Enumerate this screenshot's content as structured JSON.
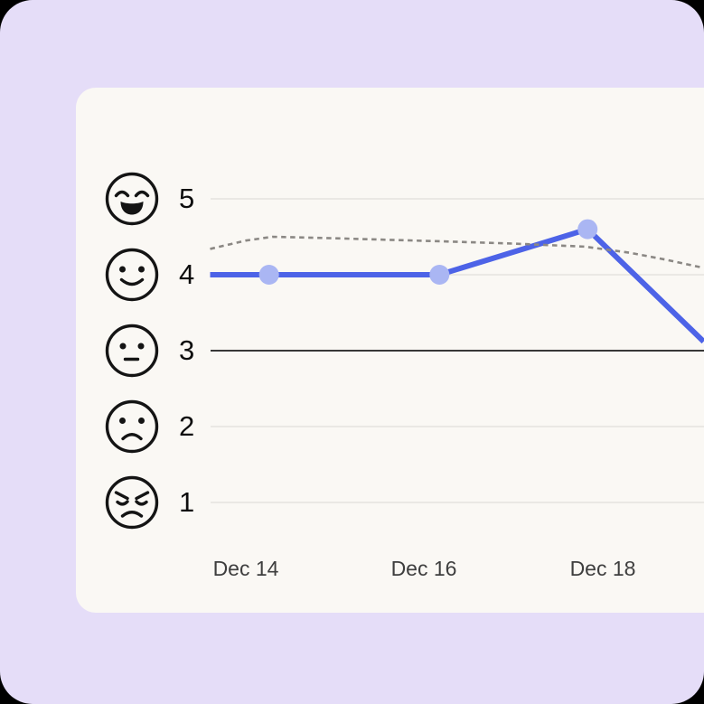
{
  "surface": {
    "backdrop_color": "#e5ddf8",
    "card_color": "#faf8f4",
    "outer_color": "#000000"
  },
  "chart_data": {
    "type": "line",
    "title": "",
    "description": "Mood rating line chart with emoji scale 1-5, solid current line with markers and dashed previous trend line",
    "x_axis": {
      "tick_labels": [
        "Dec 14",
        "Dec 16",
        "Dec 18"
      ],
      "tick_days": [
        14,
        16,
        18
      ]
    },
    "y_axis": {
      "min": 1,
      "max": 5,
      "gridline_values": [
        1,
        2,
        3,
        4,
        5
      ],
      "emphasized_gridline": 3,
      "rows": [
        {
          "label": "5",
          "icon": "face-beaming-smile-icon",
          "mood": "very-happy"
        },
        {
          "label": "4",
          "icon": "face-smile-icon",
          "mood": "happy"
        },
        {
          "label": "3",
          "icon": "face-neutral-icon",
          "mood": "neutral"
        },
        {
          "label": "2",
          "icon": "face-frown-icon",
          "mood": "sad"
        },
        {
          "label": "1",
          "icon": "face-angry-icon",
          "mood": "angry"
        }
      ]
    },
    "series": [
      {
        "name": "mood-current",
        "style": "solid",
        "color": "#4d63e7",
        "marker_color": "#aab6f3",
        "width": 6,
        "marker_radius": 11,
        "points": [
          {
            "day": 13.6,
            "value": 4.0,
            "marker": false
          },
          {
            "day": 14.26,
            "value": 4.0,
            "marker": true
          },
          {
            "day": 16.17,
            "value": 4.0,
            "marker": true
          },
          {
            "day": 17.83,
            "value": 4.6,
            "marker": true
          },
          {
            "day": 19.13,
            "value": 3.12,
            "marker": false
          }
        ]
      },
      {
        "name": "mood-previous",
        "style": "dashed",
        "color": "#8b8884",
        "width": 2.6,
        "dash": "5.5 4.5",
        "points": [
          {
            "day": 13.6,
            "value": 4.34,
            "marker": false
          },
          {
            "day": 14.0,
            "value": 4.45,
            "marker": false
          },
          {
            "day": 14.3,
            "value": 4.5,
            "marker": false
          },
          {
            "day": 15.0,
            "value": 4.48,
            "marker": false
          },
          {
            "day": 15.6,
            "value": 4.46,
            "marker": false
          },
          {
            "day": 16.2,
            "value": 4.44,
            "marker": false
          },
          {
            "day": 17.0,
            "value": 4.41,
            "marker": false
          },
          {
            "day": 17.8,
            "value": 4.37,
            "marker": false
          },
          {
            "day": 18.3,
            "value": 4.29,
            "marker": false
          },
          {
            "day": 18.7,
            "value": 4.2,
            "marker": false
          },
          {
            "day": 19.13,
            "value": 4.09,
            "marker": false
          }
        ]
      }
    ],
    "colors": {
      "gridline": "#e4e2de",
      "gridline_emphasis": "#1c1c1c"
    },
    "legend": "none",
    "grid": "horizontal-only"
  }
}
